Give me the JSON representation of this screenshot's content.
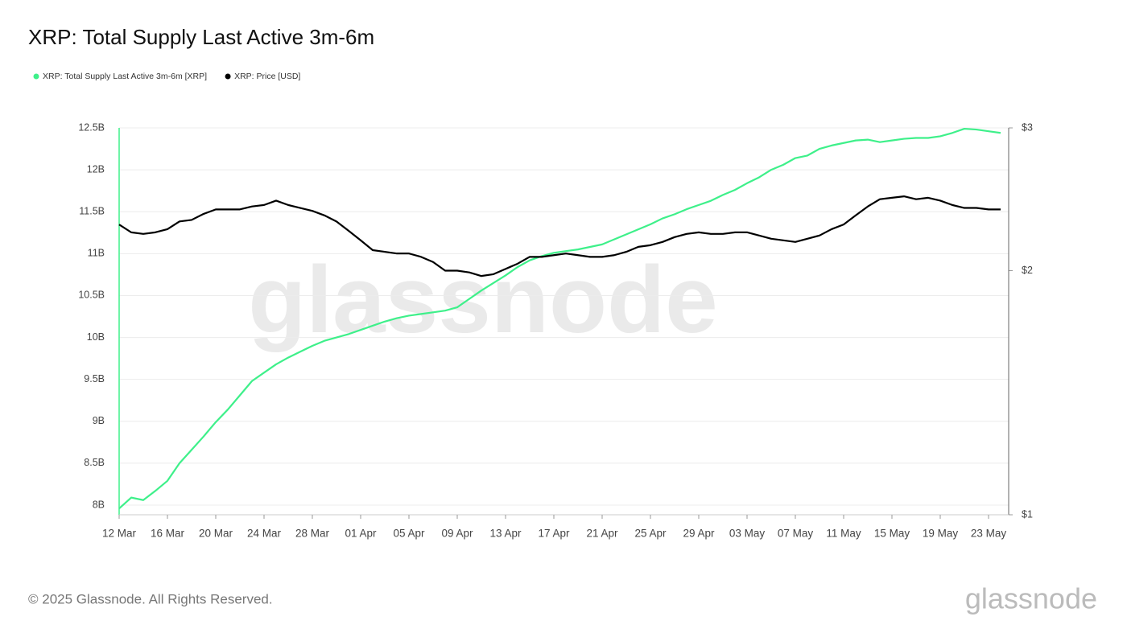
{
  "chart_data": {
    "type": "line",
    "title": "XRP: Total Supply Last Active 3m-6m",
    "categories": [
      "12 Mar",
      null,
      null,
      null,
      "16 Mar",
      null,
      null,
      null,
      "20 Mar",
      null,
      null,
      null,
      "24 Mar",
      null,
      null,
      null,
      "28 Mar",
      null,
      null,
      null,
      "01 Apr",
      null,
      null,
      null,
      "05 Apr",
      null,
      null,
      null,
      "09 Apr",
      null,
      null,
      null,
      "13 Apr",
      null,
      null,
      null,
      "17 Apr",
      null,
      null,
      null,
      "21 Apr",
      null,
      null,
      null,
      "25 Apr",
      null,
      null,
      null,
      "29 Apr",
      null,
      null,
      null,
      "03 May",
      null,
      null,
      null,
      "07 May",
      null,
      null,
      null,
      "11 May",
      null,
      null,
      null,
      "15 May",
      null,
      null,
      null,
      "19 May",
      null,
      null,
      null,
      "23 May",
      null
    ],
    "series": [
      {
        "name": "XRP: Total Supply Last Active 3m-6m [XRP]",
        "color": "#3ef08a",
        "axis": "y",
        "values": [
          7.96,
          8.09,
          8.06,
          8.17,
          8.29,
          8.5,
          8.66,
          8.82,
          8.99,
          9.14,
          9.31,
          9.48,
          9.58,
          9.68,
          9.76,
          9.83,
          9.9,
          9.96,
          10.0,
          10.04,
          10.09,
          10.14,
          10.19,
          10.23,
          10.26,
          10.28,
          10.3,
          10.32,
          10.36,
          10.46,
          10.56,
          10.65,
          10.74,
          10.84,
          10.92,
          10.97,
          11.01,
          11.03,
          11.05,
          11.08,
          11.11,
          11.17,
          11.23,
          11.29,
          11.35,
          11.42,
          11.47,
          11.53,
          11.58,
          11.63,
          11.7,
          11.76,
          11.84,
          11.91,
          12.0,
          12.06,
          12.14,
          12.17,
          12.25,
          12.29,
          12.32,
          12.35,
          12.36,
          12.33,
          12.35,
          12.37,
          12.38,
          12.38,
          12.4,
          12.44,
          12.49,
          12.48,
          12.46,
          12.44
        ]
      },
      {
        "name": "XRP: Price [USD]",
        "color": "#000000",
        "axis": "y2",
        "values": [
          2.28,
          2.23,
          2.22,
          2.23,
          2.25,
          2.3,
          2.31,
          2.35,
          2.38,
          2.38,
          2.38,
          2.4,
          2.41,
          2.44,
          2.41,
          2.39,
          2.37,
          2.34,
          2.3,
          2.24,
          2.18,
          2.12,
          2.11,
          2.1,
          2.1,
          2.08,
          2.05,
          2.0,
          2.0,
          1.99,
          1.97,
          1.98,
          2.01,
          2.04,
          2.08,
          2.08,
          2.09,
          2.1,
          2.09,
          2.08,
          2.08,
          2.09,
          2.11,
          2.14,
          2.15,
          2.17,
          2.2,
          2.22,
          2.23,
          2.22,
          2.22,
          2.23,
          2.23,
          2.21,
          2.19,
          2.18,
          2.17,
          2.19,
          2.21,
          2.25,
          2.28,
          2.34,
          2.4,
          2.45,
          2.46,
          2.47,
          2.45,
          2.46,
          2.44,
          2.41,
          2.39,
          2.39,
          2.38,
          2.38
        ]
      }
    ],
    "ylim": [
      7.885,
      12.5
    ],
    "yticks": [
      {
        "value": 8,
        "label": "8B"
      },
      {
        "value": 8.5,
        "label": "8.5B"
      },
      {
        "value": 9,
        "label": "9B"
      },
      {
        "value": 9.5,
        "label": "9.5B"
      },
      {
        "value": 10,
        "label": "10B"
      },
      {
        "value": 10.5,
        "label": "10.5B"
      },
      {
        "value": 11,
        "label": "11B"
      },
      {
        "value": 11.5,
        "label": "11.5B"
      },
      {
        "value": 12,
        "label": "12B"
      },
      {
        "value": 12.5,
        "label": "12.5B"
      }
    ],
    "y2lim": [
      1,
      3
    ],
    "y2ticks": [
      {
        "value": 1,
        "label": "$1"
      },
      {
        "value": 2,
        "label": "$2"
      },
      {
        "value": 3,
        "label": "$3"
      }
    ],
    "y2scale": "log",
    "grid": true,
    "legend": "top-left",
    "watermark": "glassnode",
    "footer": "© 2025 Glassnode. All Rights Reserved.",
    "logo": "glassnode"
  }
}
